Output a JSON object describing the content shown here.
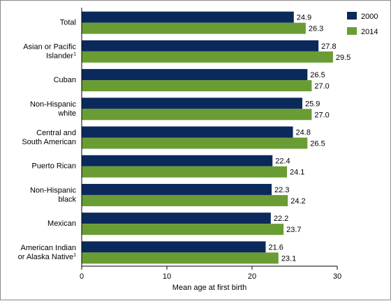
{
  "chart_data": {
    "type": "bar",
    "orientation": "horizontal",
    "title": "",
    "xlabel": "Mean age at first birth",
    "ylabel": "",
    "xlim": [
      0,
      30
    ],
    "xticks": [
      0,
      10,
      20,
      30
    ],
    "grid": false,
    "legend_position": "top-right",
    "categories": [
      {
        "lines": [
          "Total"
        ],
        "superscript": ""
      },
      {
        "lines": [
          "Asian or Pacific",
          "Islander"
        ],
        "superscript": "1"
      },
      {
        "lines": [
          "Cuban"
        ],
        "superscript": ""
      },
      {
        "lines": [
          "Non-Hispanic",
          "white"
        ],
        "superscript": ""
      },
      {
        "lines": [
          "Central and",
          "South American"
        ],
        "superscript": ""
      },
      {
        "lines": [
          "Puerto Rican"
        ],
        "superscript": ""
      },
      {
        "lines": [
          "Non-Hispanic",
          "black"
        ],
        "superscript": ""
      },
      {
        "lines": [
          "Mexican"
        ],
        "superscript": ""
      },
      {
        "lines": [
          "American Indian",
          "or Alaska Native"
        ],
        "superscript": "1"
      }
    ],
    "series": [
      {
        "name": "2000",
        "color": "#0b2a5b",
        "values": [
          24.9,
          27.8,
          26.5,
          25.9,
          24.8,
          22.4,
          22.3,
          22.2,
          21.6
        ]
      },
      {
        "name": "2014",
        "color": "#6a9c34",
        "values": [
          26.3,
          29.5,
          27.0,
          27.0,
          26.5,
          24.1,
          24.2,
          23.7,
          23.1
        ]
      }
    ]
  }
}
